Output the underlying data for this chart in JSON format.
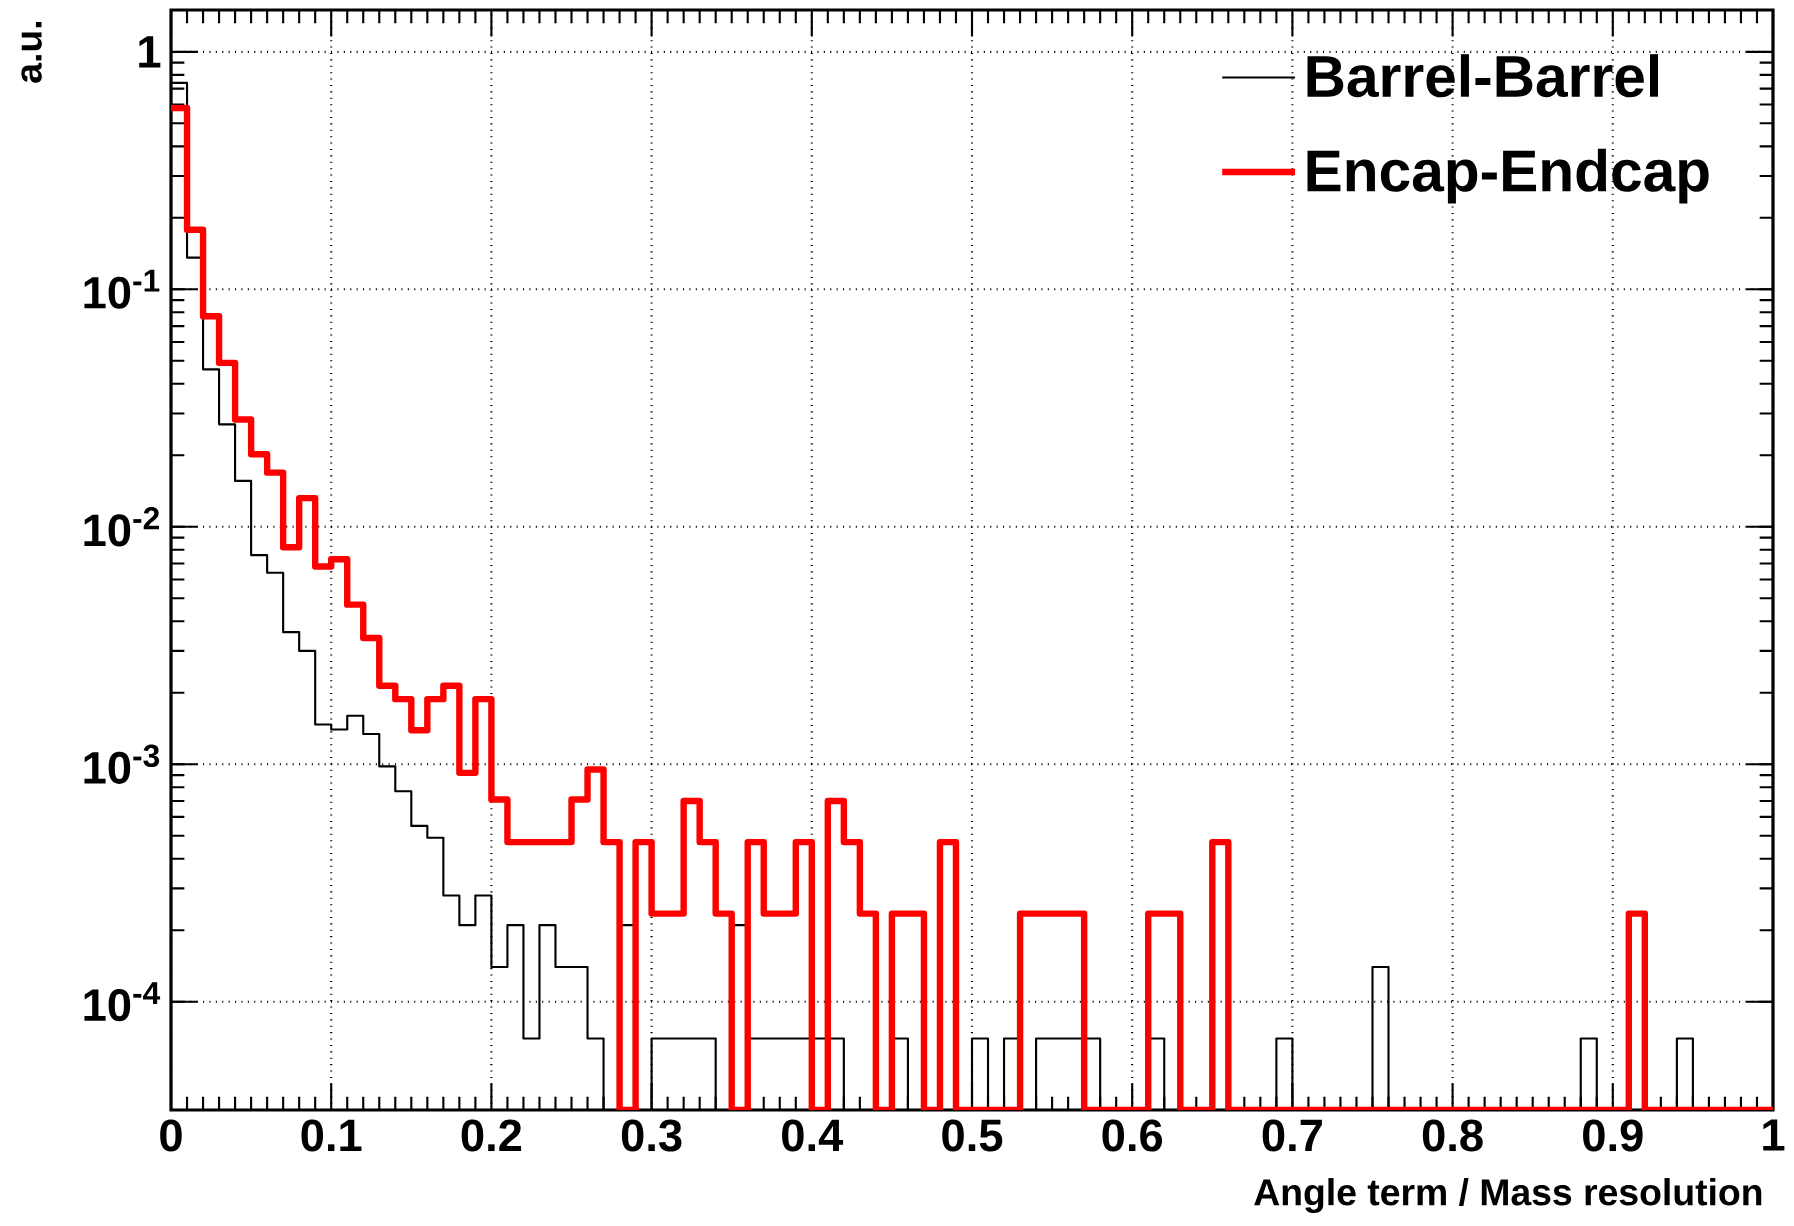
{
  "chart_data": {
    "type": "histogram",
    "xlabel": "Angle term / Mass resolution",
    "ylabel": "a.u.",
    "bins": [
      0,
      0.01,
      0.02,
      0.03,
      0.04,
      0.05,
      0.06,
      0.07,
      0.08,
      0.09,
      0.1,
      0.11,
      0.12,
      0.13,
      0.14,
      0.15,
      0.16,
      0.17,
      0.18,
      0.19,
      0.2,
      0.21,
      0.22,
      0.23,
      0.24,
      0.25,
      0.26,
      0.27,
      0.28,
      0.29,
      0.3,
      0.31,
      0.32,
      0.33,
      0.34,
      0.35,
      0.36,
      0.37,
      0.38,
      0.39,
      0.4,
      0.41,
      0.42,
      0.43,
      0.44,
      0.45,
      0.46,
      0.47,
      0.48,
      0.49,
      0.5,
      0.51,
      0.52,
      0.53,
      0.54,
      0.55,
      0.56,
      0.57,
      0.58,
      0.59,
      0.6,
      0.61,
      0.62,
      0.63,
      0.64,
      0.65,
      0.66,
      0.67,
      0.68,
      0.69,
      0.7,
      0.71,
      0.72,
      0.73,
      0.74,
      0.75,
      0.76,
      0.77,
      0.78,
      0.79,
      0.8,
      0.81,
      0.82,
      0.83,
      0.84,
      0.85,
      0.86,
      0.87,
      0.88,
      0.89,
      0.9,
      0.91,
      0.92,
      0.93,
      0.94,
      0.95,
      0.96,
      0.97,
      0.98,
      0.99,
      1
    ],
    "series": [
      {
        "name": "Barrel-Barrel",
        "color": "#000000",
        "values": [
          0.74,
          0.136,
          0.046,
          0.027,
          0.0156,
          0.0076,
          0.0064,
          0.0036,
          0.003,
          0.00147,
          0.0014,
          0.0016,
          0.00134,
          0.00098,
          0.00077,
          0.00055,
          0.00049,
          0.00028,
          0.00021,
          0.00028,
          0.00014,
          0.00021,
          7e-05,
          0.00021,
          0.00014,
          0.00014,
          7e-05,
          null,
          0.00021,
          null,
          7e-05,
          7e-05,
          7e-05,
          7e-05,
          null,
          0.00021,
          7e-05,
          7e-05,
          7e-05,
          7e-05,
          7e-05,
          7e-05,
          null,
          null,
          null,
          7e-05,
          null,
          null,
          null,
          null,
          7e-05,
          null,
          7e-05,
          null,
          7e-05,
          7e-05,
          7e-05,
          7e-05,
          null,
          null,
          null,
          7e-05,
          null,
          null,
          null,
          null,
          null,
          null,
          null,
          7e-05,
          null,
          null,
          null,
          null,
          null,
          0.00014,
          null,
          null,
          null,
          null,
          null,
          null,
          null,
          null,
          null,
          null,
          null,
          null,
          7e-05,
          null,
          null,
          null,
          null,
          null,
          7e-05,
          null,
          null,
          null,
          null,
          null
        ]
      },
      {
        "name": "Encap-Endcap",
        "color": "#ff0000",
        "values": [
          0.58,
          0.178,
          0.077,
          0.049,
          0.0283,
          0.0202,
          0.0169,
          0.0082,
          0.0132,
          0.0068,
          0.0073,
          0.0047,
          0.0034,
          0.00214,
          0.00188,
          0.00139,
          0.00188,
          0.00214,
          0.00092,
          0.00188,
          0.00071,
          0.00047,
          0.00047,
          0.00047,
          0.00047,
          0.00071,
          0.00095,
          0.00047,
          null,
          0.00047,
          0.000235,
          0.000235,
          0.0007,
          0.00047,
          0.000235,
          null,
          0.00047,
          0.000235,
          0.000235,
          0.00047,
          null,
          0.0007,
          0.00047,
          0.000235,
          null,
          0.000235,
          0.000235,
          null,
          0.00047,
          null,
          null,
          null,
          null,
          0.000235,
          0.000235,
          0.000235,
          0.000235,
          null,
          null,
          null,
          null,
          0.000235,
          0.000235,
          null,
          null,
          0.00047,
          null,
          null,
          null,
          null,
          null,
          null,
          null,
          null,
          null,
          null,
          null,
          null,
          null,
          null,
          null,
          null,
          null,
          null,
          null,
          null,
          null,
          null,
          null,
          null,
          null,
          0.000235,
          null,
          null,
          null,
          null,
          null,
          null,
          null,
          null
        ]
      }
    ],
    "xlim": [
      0,
      1
    ],
    "ylim": [
      3.5e-05,
      1.5
    ],
    "xticks": [
      0,
      0.1,
      0.2,
      0.3,
      0.4,
      0.5,
      0.6,
      0.7,
      0.8,
      0.9,
      1
    ],
    "yticks": [
      {
        "value": 0.0001,
        "label": "10$^{-4}$"
      },
      {
        "value": 0.001,
        "label": "10$^{-3}$"
      },
      {
        "value": 0.01,
        "label": "10$^{-2}$"
      },
      {
        "value": 0.1,
        "label": "10$^{-1}$"
      },
      1
    ],
    "log": true,
    "grid": true,
    "legend": "top right",
    "marker": "none"
  }
}
